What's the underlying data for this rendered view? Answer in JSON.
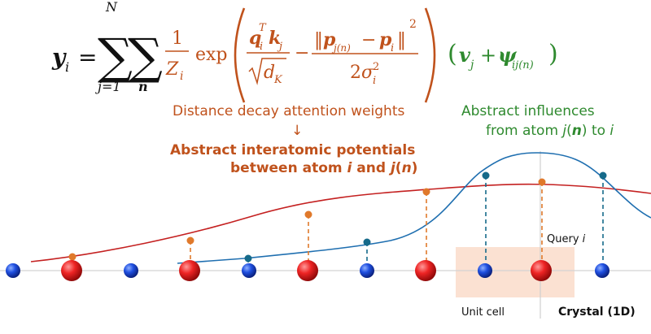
{
  "formula": {
    "lhs": "y",
    "lhs_sub": "i",
    "equals": "=",
    "sum1_top": "N",
    "sum1_bottom": "j=1",
    "sum2_bottom": "n",
    "frac_num": "1",
    "frac_den": "Z",
    "frac_den_sub": "i",
    "exp": "exp",
    "q": "q",
    "q_sub": "i",
    "q_sup": "T",
    "k": "k",
    "k_sub": "j",
    "sqrt_d": "d",
    "sqrt_d_sub": "K",
    "minus": "−",
    "norm_open": "‖",
    "p1": "p",
    "p1_sub": "j(n)",
    "norm_minus": "−",
    "p2": "p",
    "p2_sub": "i",
    "norm_close": "‖",
    "norm_sup": "2",
    "sigma_den_coef": "2",
    "sigma": "σ",
    "sigma_sup": "2",
    "sigma_sub": "i",
    "v": "v",
    "v_sub": "j",
    "plus": "+",
    "psi": "ψ",
    "psi_sub": "ij(n)"
  },
  "labels": {
    "attention_weights": "Distance decay attention weights",
    "arrow": "↓",
    "potentials_line1": "Abstract interatomic potentials",
    "potentials_line2_pre": "between atom ",
    "potentials_line2_i": "i",
    "potentials_line2_mid": " and ",
    "potentials_line2_j": "j",
    "potentials_line2_n": "n",
    "influences_line1": "Abstract influences",
    "influences_line2_pre": "from atom ",
    "influences_line2_j": "j",
    "influences_line2_n": "n",
    "influences_line2_mid": " to ",
    "influences_line2_i": "i",
    "query_pre": "Query ",
    "query_i": "i",
    "unit_cell": "Unit cell",
    "crystal": "Crystal (1D)"
  },
  "colors": {
    "weights": "#c0521c",
    "influences": "#2f8a2f",
    "red_curve": "#c42020",
    "blue_curve": "#1f6fb0",
    "orange_marker": "#e0792b",
    "teal_marker": "#166a8a",
    "red_atom": "#e02020",
    "blue_atom": "#1846d6",
    "unit_cell_fill": "#fbe1d2"
  }
}
